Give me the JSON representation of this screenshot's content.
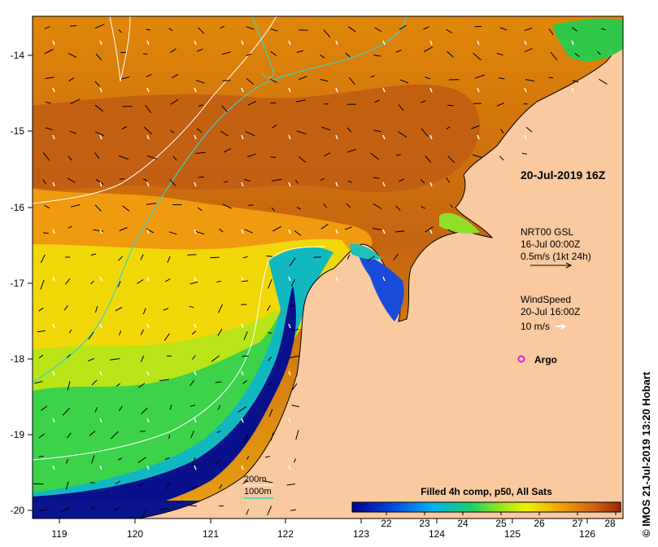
{
  "map": {
    "timestamp_label": "20-Jul-2019 16Z",
    "x_ticks": [
      "119",
      "120",
      "121",
      "122",
      "123",
      "124",
      "125",
      "126"
    ],
    "y_ticks": [
      "-14",
      "-15",
      "-16",
      "-17",
      "-18",
      "-19",
      "-20"
    ],
    "current_legend": {
      "line1": "NRT00 GSL",
      "line2": "16-Jul 00:00Z",
      "line3": "0.5m/s (1kt 24h)"
    },
    "wind_legend": {
      "line1": "WindSpeed",
      "line2": "20-Jul 16:00Z",
      "line3": "10 m/s"
    },
    "argo_label": "Argo",
    "contour_legend": {
      "label_200": "200m",
      "label_1000": "1000m"
    },
    "colorbar": {
      "title": "Filled 4h comp, p50, All Sats",
      "ticks": [
        "22",
        "23",
        "24",
        "25",
        "26",
        "27",
        "28"
      ]
    },
    "credit": "© IMOS 21-Jul-2019 13:20 Hobart",
    "colors": {
      "land": "#f9c9a0",
      "contour_200": "#ffffff",
      "contour_1000": "#3ad3c6",
      "argo": "#e020e0"
    }
  }
}
